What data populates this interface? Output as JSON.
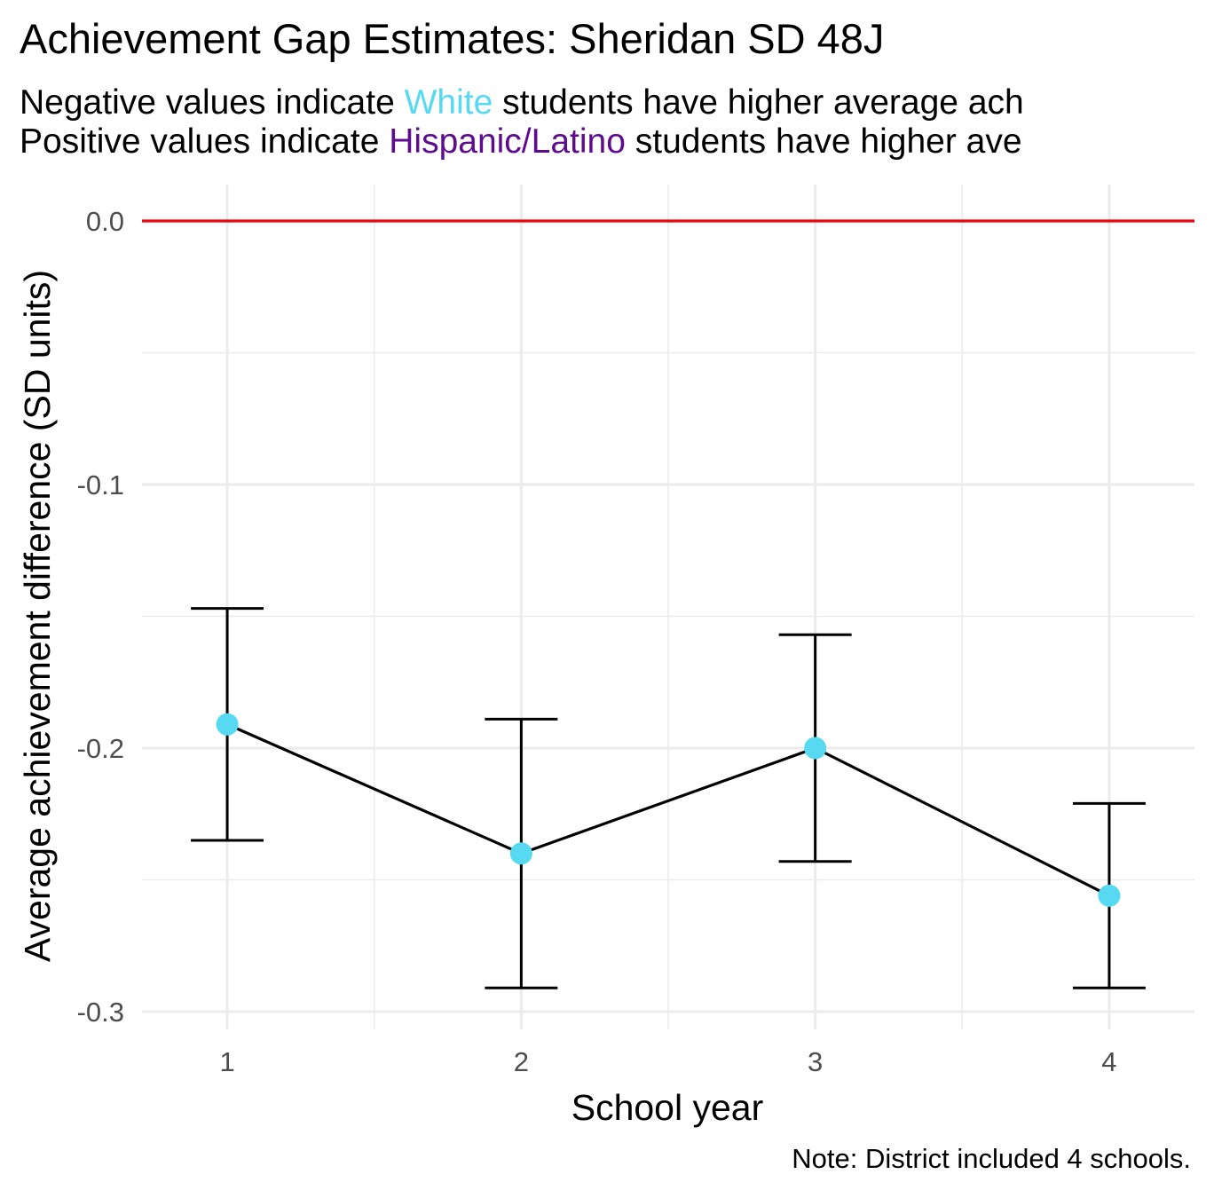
{
  "chart_data": {
    "type": "line",
    "title": "Achievement Gap Estimates: Sheridan SD 48J",
    "subtitle": {
      "line1": {
        "before": "Negative values indicate ",
        "highlight": "White",
        "after": " students have higher average ach"
      },
      "line2": {
        "before": "Positive values indicate ",
        "highlight": "Hispanic/Latino",
        "after": " students have higher ave"
      }
    },
    "highlight_colors": {
      "white": "#56D9F1",
      "hispanic_latino": "#5E0C8E"
    },
    "xlabel": "School year",
    "ylabel": "Average achievement difference (SD units)",
    "caption": "Note: District included 4 schools.",
    "x": [
      1,
      2,
      3,
      4
    ],
    "y": [
      -0.191,
      -0.24,
      -0.2,
      -0.256
    ],
    "ci_lower": [
      -0.235,
      -0.291,
      -0.243,
      -0.291
    ],
    "ci_upper": [
      -0.147,
      -0.189,
      -0.157,
      -0.221
    ],
    "xlim": [
      0.71,
      4.29
    ],
    "ylim": [
      -0.3,
      0.0
    ],
    "x_ticks": [
      1,
      2,
      3,
      4
    ],
    "x_tick_labels": [
      "1",
      "2",
      "3",
      "4"
    ],
    "y_ticks": [
      0.0,
      -0.1,
      -0.2,
      -0.3
    ],
    "y_tick_labels": [
      "0.0",
      "-0.1",
      "-0.2",
      "-0.3"
    ],
    "reference_line": {
      "y": 0.0,
      "color": "#E8070C"
    },
    "point_color": "#56D9F1",
    "line_color": "#000000",
    "grid": true,
    "legend": "none"
  }
}
